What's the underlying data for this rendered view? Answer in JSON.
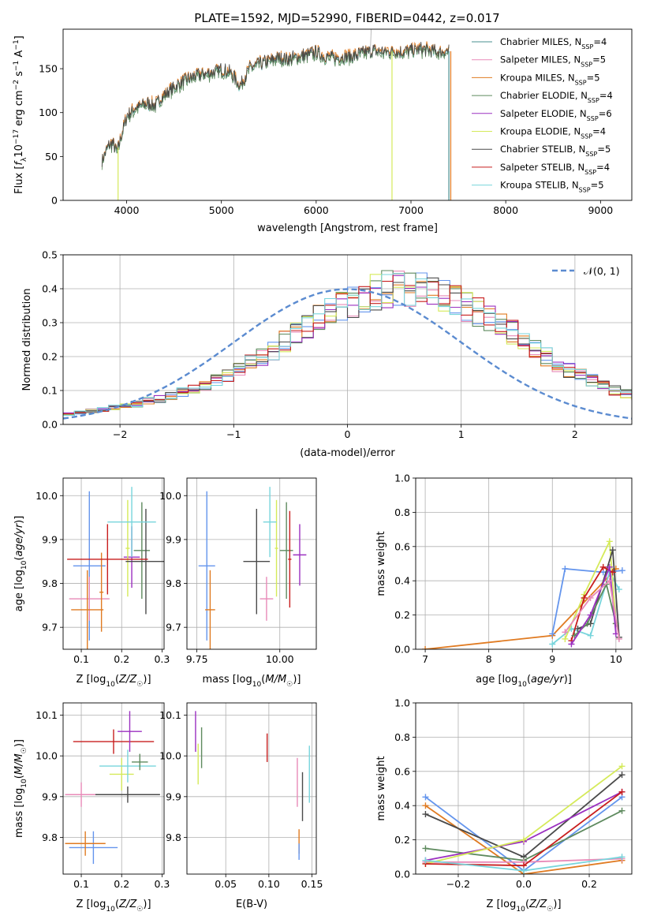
{
  "figure_title": "PLATE=1592, MJD=52990, FIBERID=0442, z=0.017",
  "colors": {
    "c1": "#6495ed",
    "c2": "#e88ab8",
    "c3": "#e07b22",
    "c4": "#5e8a5e",
    "c5": "#9b30c0",
    "c6": "#d5ea5a",
    "c7": "#4a4a4a",
    "c8": "#c81e1e",
    "c9": "#78d5dc"
  },
  "chart_data": [
    {
      "id": "spectrum",
      "type": "line",
      "xlabel": "wavelength [Angstrom, rest frame]",
      "ylabel": "Flux [f_λ 10^-17 erg cm^-2 s^-1 A^-1]",
      "xlim": [
        3330,
        9330
      ],
      "ylim": [
        0,
        195
      ],
      "xticks": [
        4000,
        5000,
        6000,
        7000,
        8000,
        9000
      ],
      "yticks": [
        0,
        50,
        100,
        150
      ],
      "legend_position": "upper right",
      "legend": [
        {
          "label": "Chabrier MILES, N_SSP=4",
          "color": "#4a8f8f"
        },
        {
          "label": "Salpeter MILES, N_SSP=5",
          "color": "#e88ab8"
        },
        {
          "label": "Kroupa MILES, N_SSP=5",
          "color": "#e07b22"
        },
        {
          "label": "Chabrier ELODIE, N_SSP=4",
          "color": "#5e8a5e"
        },
        {
          "label": "Salpeter ELODIE, N_SSP=6",
          "color": "#9b30c0"
        },
        {
          "label": "Kroupa ELODIE, N_SSP=4",
          "color": "#d5ea5a"
        },
        {
          "label": "Chabrier STELIB, N_SSP=5",
          "color": "#4a4a4a"
        },
        {
          "label": "Salpeter STELIB, N_SSP=4",
          "color": "#c81e1e"
        },
        {
          "label": "Kroupa STELIB, N_SSP=5",
          "color": "#78d5dc"
        }
      ],
      "continuum": {
        "x": [
          3740,
          3800,
          3850,
          3900,
          3950,
          4000,
          4100,
          4200,
          4300,
          4400,
          4500,
          4600,
          4700,
          4800,
          4900,
          5000,
          5100,
          5200,
          5300,
          5400,
          5500,
          5600,
          5700,
          5800,
          5900,
          6000,
          6100,
          6200,
          6300,
          6400,
          6500,
          6600,
          6700,
          6800,
          6900,
          7000,
          7100,
          7200,
          7300,
          7400
        ],
        "y": [
          45,
          60,
          65,
          55,
          75,
          95,
          105,
          110,
          108,
          120,
          128,
          135,
          140,
          143,
          145,
          148,
          145,
          130,
          150,
          155,
          158,
          162,
          160,
          163,
          165,
          168,
          163,
          162,
          163,
          164,
          167,
          170,
          168,
          170,
          168,
          170,
          172,
          170,
          168,
          170
        ]
      },
      "model_ends": [
        {
          "name": "Kroupa ELODIE",
          "color": "#d5ea5a",
          "x_start": 3910,
          "x_end": 6800
        },
        {
          "name": "Chabrier MILES",
          "color": "#4a8f8f",
          "x_start": 3740,
          "x_end": 7400
        },
        {
          "name": "Kroupa MILES",
          "color": "#e07b22",
          "x_start": 3740,
          "x_end": 7420
        }
      ]
    },
    {
      "id": "residual-distribution",
      "type": "bar",
      "xlabel": "(data-model)/error",
      "ylabel": "Normed distribution",
      "xlim": [
        -2.5,
        2.5
      ],
      "ylim": [
        0,
        0.5
      ],
      "xticks": [
        -2,
        -1,
        0,
        1,
        2
      ],
      "yticks": [
        0.0,
        0.1,
        0.2,
        0.3,
        0.4,
        0.5
      ],
      "bin_width": 0.1,
      "legend": [
        {
          "label": "𝒩(0, 1)",
          "style": "dashed",
          "color": "#5b8bd0"
        }
      ],
      "base_values": [
        0.03,
        0.035,
        0.04,
        0.045,
        0.05,
        0.055,
        0.06,
        0.07,
        0.075,
        0.085,
        0.095,
        0.105,
        0.115,
        0.13,
        0.145,
        0.16,
        0.18,
        0.2,
        0.22,
        0.245,
        0.27,
        0.29,
        0.31,
        0.33,
        0.35,
        0.365,
        0.38,
        0.39,
        0.4,
        0.4,
        0.4,
        0.4,
        0.39,
        0.38,
        0.37,
        0.35,
        0.335,
        0.315,
        0.29,
        0.27,
        0.245,
        0.22,
        0.2,
        0.18,
        0.16,
        0.145,
        0.13,
        0.115,
        0.1,
        0.09,
        0.08,
        0.07,
        0.06,
        0.055,
        0.05,
        0.045,
        0.04,
        0.035,
        0.033,
        0.03
      ]
    },
    {
      "id": "age-vs-Z",
      "type": "scatter",
      "xlabel": "Z [log10(Z/Z☉)]",
      "ylabel": "age [log10(age/yr)]",
      "xlim": [
        0.055,
        0.305
      ],
      "ylim": [
        9.65,
        10.04
      ],
      "xticks": [
        0.1,
        0.2,
        0.3
      ],
      "yticks": [
        9.7,
        9.8,
        9.9,
        10.0
      ],
      "points": [
        {
          "c": "#6495ed",
          "x": 0.12,
          "y": 9.84,
          "xe": 0.04,
          "ye": 0.17
        },
        {
          "c": "#e88ab8",
          "x": 0.12,
          "y": 9.765,
          "xe": 0.05,
          "ye": 0.05
        },
        {
          "c": "#e07b22",
          "x": 0.115,
          "y": 9.74,
          "xe": 0.04,
          "ye": 0.09
        },
        {
          "c": "#e07b22",
          "x": 0.15,
          "y": 9.78,
          "xe": 0.005,
          "ye": 0.09
        },
        {
          "c": "#5e8a5e",
          "x": 0.25,
          "y": 9.875,
          "xe": 0.02,
          "ye": 0.11
        },
        {
          "c": "#9b30c0",
          "x": 0.225,
          "y": 9.86,
          "xe": 0.02,
          "ye": 0.07
        },
        {
          "c": "#d5ea5a",
          "x": 0.215,
          "y": 9.88,
          "xe": 0.005,
          "ye": 0.11
        },
        {
          "c": "#4a4a4a",
          "x": 0.26,
          "y": 9.85,
          "xe": 0.05,
          "ye": 0.12
        },
        {
          "c": "#c81e1e",
          "x": 0.165,
          "y": 9.855,
          "xe": 0.1,
          "ye": 0.08
        },
        {
          "c": "#78d5dc",
          "x": 0.225,
          "y": 9.94,
          "xe": 0.06,
          "ye": 0.08
        }
      ]
    },
    {
      "id": "age-vs-mass",
      "type": "scatter",
      "xlabel": "mass [log10(M/M☉)]",
      "ylabel": "",
      "xlim": [
        9.72,
        10.11
      ],
      "ylim": [
        9.65,
        10.04
      ],
      "xticks": [
        9.75,
        10.0
      ],
      "yticks": [
        9.7,
        9.8,
        9.9,
        10.0
      ],
      "points": [
        {
          "c": "#6495ed",
          "x": 9.78,
          "y": 9.84,
          "xe": 0.025,
          "ye": 0.17
        },
        {
          "c": "#e88ab8",
          "x": 9.96,
          "y": 9.765,
          "xe": 0.02,
          "ye": 0.05
        },
        {
          "c": "#e07b22",
          "x": 9.79,
          "y": 9.74,
          "xe": 0.015,
          "ye": 0.09
        },
        {
          "c": "#5e8a5e",
          "x": 10.02,
          "y": 9.875,
          "xe": 0.02,
          "ye": 0.11
        },
        {
          "c": "#9b30c0",
          "x": 10.06,
          "y": 9.865,
          "xe": 0.02,
          "ye": 0.07
        },
        {
          "c": "#d5ea5a",
          "x": 9.99,
          "y": 9.88,
          "xe": 0.005,
          "ye": 0.11
        },
        {
          "c": "#4a4a4a",
          "x": 9.93,
          "y": 9.85,
          "xe": 0.04,
          "ye": 0.12
        },
        {
          "c": "#c81e1e",
          "x": 10.03,
          "y": 9.855,
          "xe": 0.005,
          "ye": 0.11
        },
        {
          "c": "#78d5dc",
          "x": 9.97,
          "y": 9.94,
          "xe": 0.02,
          "ye": 0.08
        }
      ]
    },
    {
      "id": "age-weights",
      "type": "line",
      "xlabel": "age [log10(age/yr)]",
      "ylabel": "mass weight",
      "xlim": [
        6.85,
        10.25
      ],
      "ylim": [
        0,
        1.0
      ],
      "xticks": [
        7,
        8,
        9,
        10
      ],
      "yticks": [
        0.0,
        0.2,
        0.4,
        0.6,
        0.8,
        1.0
      ],
      "series": [
        {
          "c": "#e07b22",
          "x": [
            7.0,
            9.0,
            10.0
          ],
          "y": [
            0.0,
            0.08,
            0.47
          ]
        },
        {
          "c": "#6495ed",
          "x": [
            9.0,
            9.2,
            9.8,
            10.1
          ],
          "y": [
            0.09,
            0.47,
            0.45,
            0.46
          ]
        },
        {
          "c": "#78d5dc",
          "x": [
            9.0,
            9.3,
            9.6,
            9.9,
            10.05
          ],
          "y": [
            0.03,
            0.12,
            0.08,
            0.45,
            0.35
          ]
        },
        {
          "c": "#d5ea5a",
          "x": [
            9.2,
            9.5,
            9.9,
            10.0
          ],
          "y": [
            0.06,
            0.32,
            0.63,
            0.15
          ]
        },
        {
          "c": "#4a4a4a",
          "x": [
            9.4,
            9.6,
            9.95,
            10.05
          ],
          "y": [
            0.12,
            0.15,
            0.58,
            0.07
          ]
        },
        {
          "c": "#c81e1e",
          "x": [
            9.3,
            9.5,
            9.8,
            9.95
          ],
          "y": [
            0.05,
            0.3,
            0.48,
            0.45
          ]
        },
        {
          "c": "#5e8a5e",
          "x": [
            9.35,
            9.55,
            9.85,
            10.0
          ],
          "y": [
            0.08,
            0.15,
            0.38,
            0.15
          ]
        },
        {
          "c": "#9b30c0",
          "x": [
            9.3,
            9.6,
            9.9,
            10.0
          ],
          "y": [
            0.03,
            0.2,
            0.48,
            0.09
          ]
        },
        {
          "c": "#e88ab8",
          "x": [
            9.2,
            9.6,
            9.9,
            10.05
          ],
          "y": [
            0.1,
            0.3,
            0.4,
            0.06
          ]
        }
      ]
    },
    {
      "id": "mass-vs-Z",
      "type": "scatter",
      "xlabel": "Z [log10(Z/Z☉)]",
      "ylabel": "mass [log10(M/M☉)]",
      "xlim": [
        0.055,
        0.305
      ],
      "ylim": [
        9.71,
        10.13
      ],
      "xticks": [
        0.1,
        0.2,
        0.3
      ],
      "yticks": [
        9.8,
        9.9,
        10.0,
        10.1
      ],
      "points": [
        {
          "c": "#6495ed",
          "x": 0.13,
          "y": 9.775,
          "xe": 0.06,
          "ye": 0.04
        },
        {
          "c": "#e07b22",
          "x": 0.11,
          "y": 9.785,
          "xe": 0.05,
          "ye": 0.03
        },
        {
          "c": "#e88ab8",
          "x": 0.1,
          "y": 9.905,
          "xe": 0.04,
          "ye": 0.03
        },
        {
          "c": "#c81e1e",
          "x": 0.18,
          "y": 10.035,
          "xe": 0.1,
          "ye": 0.03
        },
        {
          "c": "#9b30c0",
          "x": 0.22,
          "y": 10.06,
          "xe": 0.03,
          "ye": 0.05
        },
        {
          "c": "#d5ea5a",
          "x": 0.2,
          "y": 9.955,
          "xe": 0.03,
          "ye": 0.04
        },
        {
          "c": "#78d5dc",
          "x": 0.215,
          "y": 9.975,
          "xe": 0.07,
          "ye": 0.04
        },
        {
          "c": "#5e8a5e",
          "x": 0.245,
          "y": 9.985,
          "xe": 0.02,
          "ye": 0.02
        },
        {
          "c": "#4a4a4a",
          "x": 0.215,
          "y": 9.905,
          "xe": 0.08,
          "ye": 0.02
        }
      ]
    },
    {
      "id": "mass-vs-EBV",
      "type": "scatter",
      "xlabel": "E(B-V)",
      "ylabel": "",
      "xlim": [
        0.005,
        0.155
      ],
      "ylim": [
        9.71,
        10.13
      ],
      "xticks": [
        0.05,
        0.1,
        0.15
      ],
      "yticks": [
        9.8,
        9.9,
        10.0,
        10.1
      ],
      "points": [
        {
          "c": "#9b30c0",
          "x": 0.015,
          "y": 10.06,
          "xe": 0,
          "ye": 0.05
        },
        {
          "c": "#5e8a5e",
          "x": 0.022,
          "y": 10.02,
          "xe": 0,
          "ye": 0.05
        },
        {
          "c": "#d5ea5a",
          "x": 0.018,
          "y": 9.98,
          "xe": 0,
          "ye": 0.05
        },
        {
          "c": "#c81e1e",
          "x": 0.098,
          "y": 10.02,
          "xe": 0,
          "ye": 0.035
        },
        {
          "c": "#e88ab8",
          "x": 0.133,
          "y": 9.935,
          "xe": 0,
          "ye": 0.06
        },
        {
          "c": "#4a4a4a",
          "x": 0.139,
          "y": 9.9,
          "xe": 0,
          "ye": 0.06
        },
        {
          "c": "#78d5dc",
          "x": 0.147,
          "y": 9.955,
          "xe": 0,
          "ye": 0.07
        },
        {
          "c": "#e07b22",
          "x": 0.135,
          "y": 9.79,
          "xe": 0,
          "ye": 0.03
        },
        {
          "c": "#6495ed",
          "x": 0.135,
          "y": 9.765,
          "xe": 0,
          "ye": 0.02
        }
      ]
    },
    {
      "id": "Z-weights",
      "type": "line",
      "xlabel": "Z [log10(Z/Z☉)]",
      "ylabel": "mass weight",
      "xlim": [
        -0.33,
        0.33
      ],
      "ylim": [
        0,
        1.0
      ],
      "xticks": [
        -0.2,
        0.0,
        0.2
      ],
      "yticks": [
        0.0,
        0.2,
        0.4,
        0.6,
        0.8,
        1.0
      ],
      "series": [
        {
          "c": "#6495ed",
          "x": [
            -0.3,
            0.0,
            0.3
          ],
          "y": [
            0.45,
            0.02,
            0.45
          ]
        },
        {
          "c": "#e07b22",
          "x": [
            -0.3,
            0.0,
            0.3
          ],
          "y": [
            0.4,
            0.0,
            0.08
          ]
        },
        {
          "c": "#4a4a4a",
          "x": [
            -0.3,
            0.0,
            0.3
          ],
          "y": [
            0.35,
            0.1,
            0.58
          ]
        },
        {
          "c": "#5e8a5e",
          "x": [
            -0.3,
            0.0,
            0.3
          ],
          "y": [
            0.15,
            0.08,
            0.37
          ]
        },
        {
          "c": "#9b30c0",
          "x": [
            -0.3,
            0.0,
            0.3
          ],
          "y": [
            0.08,
            0.19,
            0.48
          ]
        },
        {
          "c": "#e88ab8",
          "x": [
            -0.3,
            0.0,
            0.3
          ],
          "y": [
            0.07,
            0.07,
            0.09
          ]
        },
        {
          "c": "#d5ea5a",
          "x": [
            -0.3,
            0.0,
            0.3
          ],
          "y": [
            0.06,
            0.2,
            0.63
          ]
        },
        {
          "c": "#c81e1e",
          "x": [
            -0.3,
            0.0,
            0.3
          ],
          "y": [
            0.06,
            0.05,
            0.48
          ]
        },
        {
          "c": "#78d5dc",
          "x": [
            -0.3,
            0.0,
            0.3
          ],
          "y": [
            0.08,
            0.02,
            0.1
          ]
        }
      ]
    }
  ]
}
